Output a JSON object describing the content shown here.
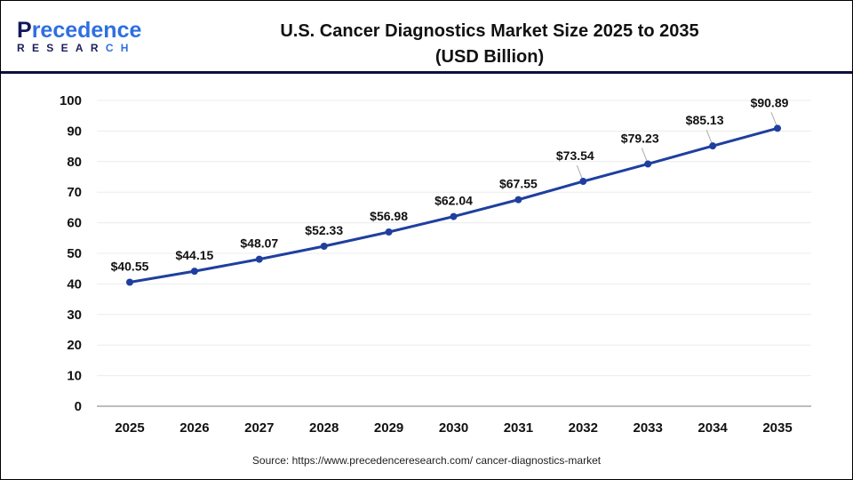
{
  "logo": {
    "line1_first": "P",
    "line1_rest": "recedence",
    "line2_first": "RESEAR",
    "line2_rest": "CH"
  },
  "title_line1": "U.S. Cancer Diagnostics Market Size 2025 to 2035",
  "title_line2": "(USD Billion)",
  "source": "Source: https://www.precedenceresearch.com/ cancer-diagnostics-market",
  "chart_data": {
    "type": "line",
    "title": "U.S. Cancer Diagnostics Market Size 2025 to 2035 (USD Billion)",
    "categories": [
      "2025",
      "2026",
      "2027",
      "2028",
      "2029",
      "2030",
      "2031",
      "2032",
      "2033",
      "2034",
      "2035"
    ],
    "values": [
      40.55,
      44.15,
      48.07,
      52.33,
      56.98,
      62.04,
      67.55,
      73.54,
      79.23,
      85.13,
      90.89
    ],
    "data_labels": [
      "$40.55",
      "$44.15",
      "$48.07",
      "$52.33",
      "$56.98",
      "$62.04",
      "$67.55",
      "$73.54",
      "$79.23",
      "$85.13",
      "$90.89"
    ],
    "ylim": [
      0,
      100
    ],
    "yticks": [
      0,
      10,
      20,
      30,
      40,
      50,
      60,
      70,
      80,
      90,
      100
    ],
    "grid": true,
    "legend": "none",
    "line_color": "#1f3f9f"
  }
}
